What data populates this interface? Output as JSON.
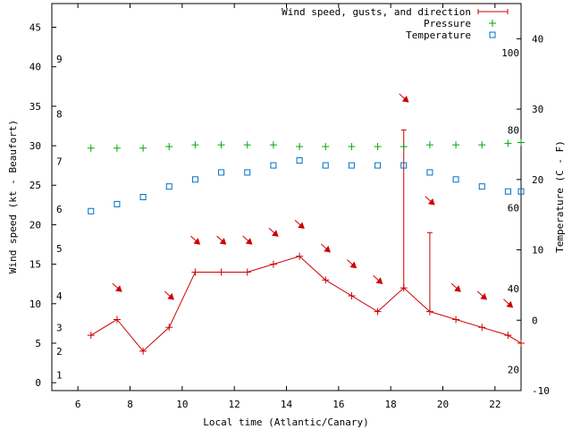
{
  "chart_data": {
    "type": "line",
    "xlabel": "Local time (Atlantic/Canary)",
    "ylabel_left": "Wind speed (kt - Beaufort)",
    "ylabel_right": "Temperature (C - F)",
    "xlim": [
      5,
      23
    ],
    "ylim_left": [
      -1,
      48
    ],
    "ylim_right": [
      -10,
      45
    ],
    "x_ticks": [
      6,
      8,
      10,
      12,
      14,
      16,
      18,
      20,
      22
    ],
    "y_ticks_left": [
      0,
      5,
      10,
      15,
      20,
      25,
      30,
      35,
      40,
      45
    ],
    "y_ticks_right": [
      -10,
      0,
      10,
      20,
      30,
      40
    ],
    "beaufort_labels": [
      {
        "label": "1",
        "value": 1
      },
      {
        "label": "2",
        "value": 4
      },
      {
        "label": "3",
        "value": 7
      },
      {
        "label": "4",
        "value": 11
      },
      {
        "label": "5",
        "value": 17
      },
      {
        "label": "6",
        "value": 22
      },
      {
        "label": "7",
        "value": 28
      },
      {
        "label": "8",
        "value": 34
      },
      {
        "label": "9",
        "value": 41
      }
    ],
    "fahrenheit_labels": [
      {
        "label": "20",
        "value": -7
      },
      {
        "label": "40",
        "value": 4.5
      },
      {
        "label": "60",
        "value": 16
      },
      {
        "label": "80",
        "value": 27
      },
      {
        "label": "100",
        "value": 38
      }
    ],
    "legend": [
      {
        "name": "Wind speed, gusts, and direction",
        "color": "#cc0000",
        "marker": "plus-errorbar"
      },
      {
        "name": "Pressure",
        "color": "#00aa00",
        "marker": "plus"
      },
      {
        "name": "Temperature",
        "color": "#0070c0",
        "marker": "square"
      }
    ],
    "series": [
      {
        "name": "Wind speed",
        "axis": "left",
        "x": [
          6.5,
          7.5,
          8.5,
          9.5,
          10.5,
          11.5,
          12.5,
          13.5,
          14.5,
          15.5,
          16.5,
          17.5,
          18.5,
          19.5,
          20.5,
          21.5,
          22.5,
          23.0
        ],
        "y": [
          6,
          8,
          4,
          7,
          14,
          14,
          14,
          15,
          16,
          13,
          11,
          9,
          12,
          9,
          8,
          7,
          6,
          5
        ]
      },
      {
        "name": "Gusts",
        "axis": "left",
        "x": [
          18.5,
          19.5
        ],
        "y": [
          32,
          19
        ]
      },
      {
        "name": "Wind direction arrows",
        "axis": "left",
        "x": [
          7.5,
          9.5,
          10.5,
          11.5,
          12.5,
          13.5,
          14.5,
          15.5,
          16.5,
          17.5,
          18.5,
          19.5,
          20.5,
          21.5,
          22.5
        ],
        "y": [
          12,
          11,
          18,
          18,
          18,
          19,
          20,
          17,
          15,
          13,
          36,
          23,
          12,
          11,
          10
        ]
      },
      {
        "name": "Pressure",
        "axis": "left",
        "x": [
          6.5,
          7.5,
          8.5,
          9.5,
          10.5,
          11.5,
          12.5,
          13.5,
          14.5,
          15.5,
          16.5,
          17.5,
          18.5,
          19.5,
          20.5,
          21.5,
          22.5,
          23.0
        ],
        "y": [
          29.7,
          29.7,
          29.7,
          29.9,
          30.1,
          30.1,
          30.1,
          30.1,
          29.9,
          29.9,
          29.9,
          29.9,
          29.9,
          30.1,
          30.1,
          30.1,
          30.3,
          30.4
        ]
      },
      {
        "name": "Temperature",
        "axis": "right",
        "x": [
          6.5,
          7.5,
          8.5,
          9.5,
          10.5,
          11.5,
          12.5,
          13.5,
          14.5,
          15.5,
          16.5,
          17.5,
          18.5,
          19.5,
          20.5,
          21.5,
          22.5,
          23.0
        ],
        "y": [
          15.5,
          16.5,
          17.5,
          19,
          20,
          21,
          21,
          22,
          22.7,
          22,
          22,
          22,
          22,
          21,
          20,
          19,
          18.3,
          18.3
        ]
      }
    ]
  }
}
